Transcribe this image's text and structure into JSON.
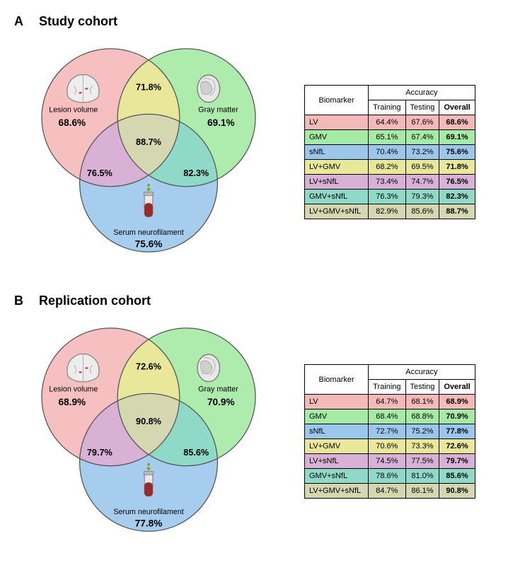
{
  "colors": {
    "lv": "#f6b9b9",
    "gmv": "#a5eaa5",
    "snfl": "#9cc7ec",
    "lv_gmv": "#e8e79a",
    "lv_snfl": "#d9b0d6",
    "gmv_snfl": "#8fd9c8",
    "all": "#d5d7b0",
    "circleStroke": "#555555",
    "tableBorder": "#000000"
  },
  "panels": [
    {
      "letter": "A",
      "title": "Study cohort",
      "venn": {
        "labels": {
          "lv": "Lesion volume",
          "gmv": "Gray matter",
          "snfl": "Serum neurofilament"
        },
        "pct": {
          "lv": "68.6%",
          "gmv": "69.1%",
          "snfl": "75.6%",
          "lv_gmv": "71.8%",
          "lv_snfl": "76.5%",
          "gmv_snfl": "82.3%",
          "all": "88.7%"
        }
      },
      "table": {
        "header": {
          "biomarker": "Biomarker",
          "accuracy": "Accuracy",
          "training": "Training",
          "testing": "Testing",
          "overall": "Overall"
        },
        "rows": [
          {
            "bm": "LV",
            "train": "64.4%",
            "test": "67.6%",
            "overall": "68.6%",
            "colorKey": "lv"
          },
          {
            "bm": "GMV",
            "train": "65.1%",
            "test": "67.4%",
            "overall": "69.1%",
            "colorKey": "gmv"
          },
          {
            "bm": "sNfL",
            "train": "70.4%",
            "test": "73.2%",
            "overall": "75.6%",
            "colorKey": "snfl"
          },
          {
            "bm": "LV+GMV",
            "train": "68.2%",
            "test": "69.5%",
            "overall": "71.8%",
            "colorKey": "lv_gmv"
          },
          {
            "bm": "LV+sNfL",
            "train": "73.4%",
            "test": "74.7%",
            "overall": "76.5%",
            "colorKey": "lv_snfl"
          },
          {
            "bm": "GMV+sNfL",
            "train": "76.3%",
            "test": "79.3%",
            "overall": "82.3%",
            "colorKey": "gmv_snfl"
          },
          {
            "bm": "LV+GMV+sNfL",
            "train": "82.9%",
            "test": "85.6%",
            "overall": "88.7%",
            "colorKey": "all"
          }
        ]
      }
    },
    {
      "letter": "B",
      "title": "Replication cohort",
      "venn": {
        "labels": {
          "lv": "Lesion volume",
          "gmv": "Gray matter",
          "snfl": "Serum neurofilament"
        },
        "pct": {
          "lv": "68.9%",
          "gmv": "70.9%",
          "snfl": "77.8%",
          "lv_gmv": "72.6%",
          "lv_snfl": "79.7%",
          "gmv_snfl": "85.6%",
          "all": "90.8%"
        }
      },
      "table": {
        "header": {
          "biomarker": "Biomarker",
          "accuracy": "Accuracy",
          "training": "Training",
          "testing": "Testing",
          "overall": "Overall"
        },
        "rows": [
          {
            "bm": "LV",
            "train": "64.7%",
            "test": "68.1%",
            "overall": "68.9%",
            "colorKey": "lv"
          },
          {
            "bm": "GMV",
            "train": "68.4%",
            "test": "68.8%",
            "overall": "70.9%",
            "colorKey": "gmv"
          },
          {
            "bm": "sNfL",
            "train": "72.7%",
            "test": "75.2%",
            "overall": "77.8%",
            "colorKey": "snfl"
          },
          {
            "bm": "LV+GMV",
            "train": "70.6%",
            "test": "73.3%",
            "overall": "72.6%",
            "colorKey": "lv_gmv"
          },
          {
            "bm": "LV+sNfL",
            "train": "74.5%",
            "test": "77.5%",
            "overall": "79.7%",
            "colorKey": "lv_snfl"
          },
          {
            "bm": "GMV+sNfL",
            "train": "78.6%",
            "test": "81.0%",
            "overall": "85.6%",
            "colorKey": "gmv_snfl"
          },
          {
            "bm": "LV+GMV+sNfL",
            "train": "84.7%",
            "test": "86.1%",
            "overall": "90.8%",
            "colorKey": "all"
          }
        ]
      }
    }
  ]
}
